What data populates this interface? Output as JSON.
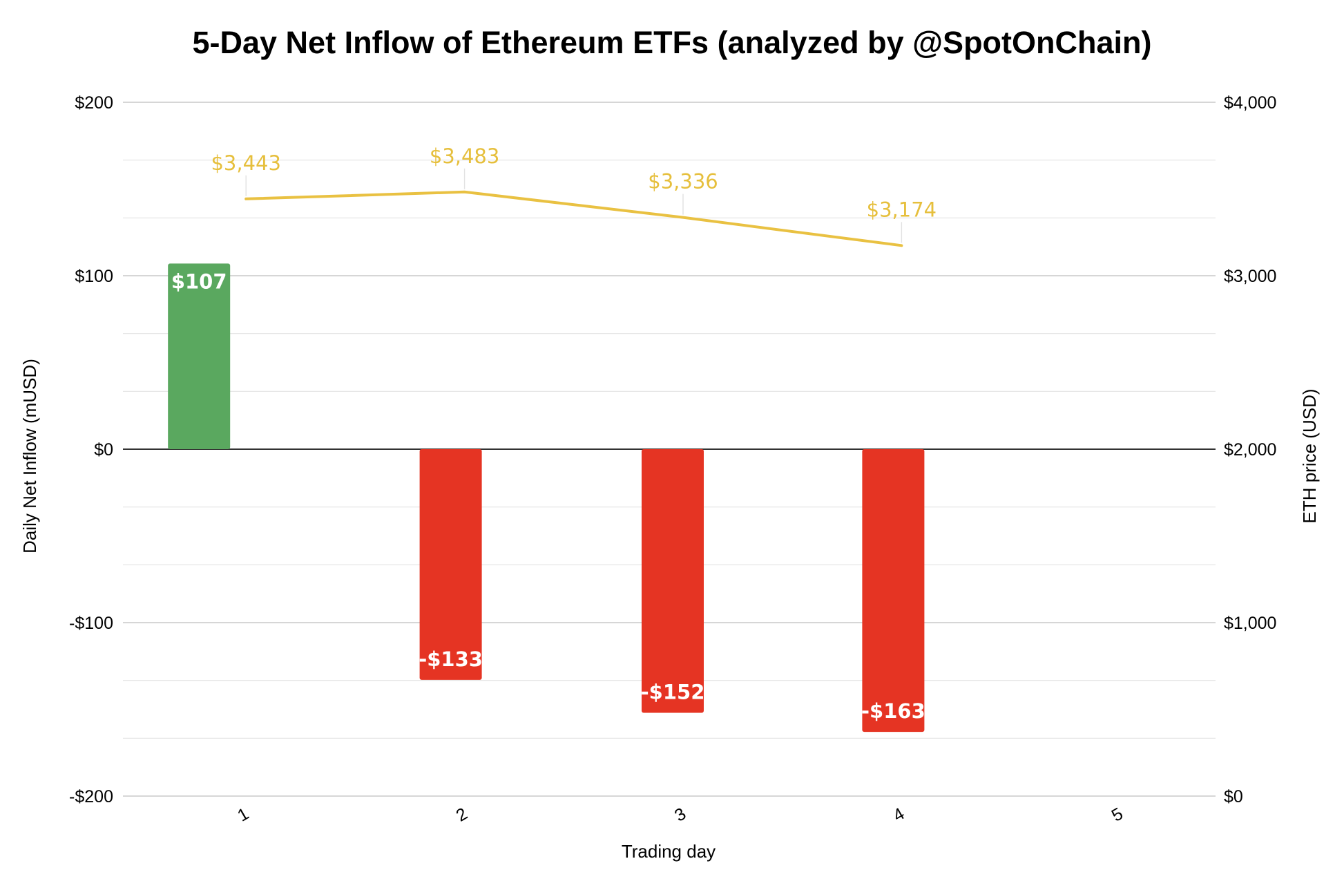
{
  "chart_data": {
    "type": "bar",
    "title": "5-Day Net Inflow of Ethereum ETFs (analyzed by @SpotOnChain)",
    "xlabel": "Trading day",
    "ylabel": "Daily Net Inflow (mUSD)",
    "y2label": "ETH price (USD)",
    "categories": [
      "1",
      "2",
      "3",
      "4",
      "5"
    ],
    "ylim": [
      -200,
      200
    ],
    "y2lim": [
      0,
      4000
    ],
    "yticks": [
      "-$200",
      "-$100",
      "$0",
      "$100",
      "$200"
    ],
    "y2ticks": [
      "$0",
      "$1,000",
      "$2,000",
      "$3,000",
      "$4,000"
    ],
    "grid": true,
    "series": [
      {
        "kind": "bar",
        "axis": "left",
        "values": [
          107,
          -133,
          -152,
          -163,
          null
        ],
        "labels": [
          "$107",
          "-$133",
          "-$152",
          "-$163",
          ""
        ],
        "positive_color": "#5aa85f",
        "negative_color": "#e53423"
      },
      {
        "kind": "line",
        "axis": "right",
        "values": [
          3443,
          3483,
          3336,
          3174,
          null
        ],
        "labels": [
          "$3,443",
          "$3,483",
          "$3,336",
          "$3,174",
          ""
        ],
        "color": "#e9c142",
        "label_color": "#e6bf3c"
      }
    ]
  }
}
